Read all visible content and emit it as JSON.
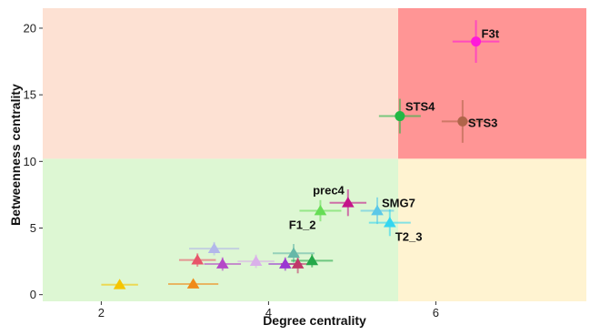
{
  "chart_data": {
    "type": "scatter",
    "xlabel": "Degree centrality",
    "ylabel": "Betweenness centrality",
    "xlim": [
      1.3,
      7.8
    ],
    "ylim": [
      -0.5,
      21.5
    ],
    "x_ticks": [
      2,
      4,
      6
    ],
    "y_ticks": [
      0,
      5,
      10,
      15,
      20
    ],
    "grid": false,
    "legend": "none",
    "quadrants": {
      "x_split": 5.55,
      "y_split": 10.2,
      "colors": {
        "top_left": "#fde1d3",
        "top_right": "#ff9595",
        "bottom_left": "#ddf7d3",
        "bottom_right": "#fff3d1"
      }
    },
    "points": [
      {
        "label": "F3t",
        "x": 6.48,
        "y": 19.0,
        "xerr": 0.28,
        "yerr": 1.6,
        "shape": "circle",
        "color": "#ff19d9"
      },
      {
        "label": "STS4",
        "x": 5.57,
        "y": 13.4,
        "xerr": 0.25,
        "yerr": 1.3,
        "shape": "circle",
        "color": "#22b845"
      },
      {
        "label": "STS3",
        "x": 6.32,
        "y": 13.0,
        "xerr": 0.25,
        "yerr": 1.6,
        "shape": "circle",
        "color": "#b0654a"
      },
      {
        "label": "prec4",
        "x": 4.95,
        "y": 6.9,
        "xerr": 0.22,
        "yerr": 1.0,
        "shape": "triangle",
        "color": "#c4148a"
      },
      {
        "label": "F1_2",
        "x": 4.62,
        "y": 6.3,
        "xerr": 0.25,
        "yerr": 0.8,
        "shape": "triangle",
        "color": "#66dd55"
      },
      {
        "label": "SMG7",
        "x": 5.3,
        "y": 6.3,
        "xerr": 0.2,
        "yerr": 1.0,
        "shape": "triangle",
        "color": "#5bc8e8"
      },
      {
        "label": "T2_3",
        "x": 5.45,
        "y": 5.4,
        "xerr": 0.25,
        "yerr": 1.0,
        "shape": "triangle",
        "color": "#34d6f0"
      },
      {
        "label": "",
        "x": 3.35,
        "y": 3.45,
        "xerr": 0.3,
        "yerr": 0.5,
        "shape": "triangle",
        "color": "#b2b7ea"
      },
      {
        "label": "",
        "x": 3.15,
        "y": 2.6,
        "xerr": 0.22,
        "yerr": 0.5,
        "shape": "triangle",
        "color": "#e8556a"
      },
      {
        "label": "",
        "x": 3.45,
        "y": 2.3,
        "xerr": 0.22,
        "yerr": 0.5,
        "shape": "triangle",
        "color": "#b548c8"
      },
      {
        "label": "",
        "x": 3.85,
        "y": 2.5,
        "xerr": 0.22,
        "yerr": 0.5,
        "shape": "triangle",
        "color": "#dab0ea"
      },
      {
        "label": "",
        "x": 4.3,
        "y": 3.1,
        "xerr": 0.25,
        "yerr": 0.7,
        "shape": "triangle",
        "color": "#66b8a8"
      },
      {
        "label": "",
        "x": 4.2,
        "y": 2.3,
        "xerr": 0.2,
        "yerr": 0.5,
        "shape": "triangle",
        "color": "#9b39d2"
      },
      {
        "label": "",
        "x": 4.35,
        "y": 2.3,
        "xerr": 0.2,
        "yerr": 0.7,
        "shape": "triangle",
        "color": "#c0386a"
      },
      {
        "label": "",
        "x": 4.52,
        "y": 2.55,
        "xerr": 0.25,
        "yerr": 0.5,
        "shape": "triangle",
        "color": "#25a84a"
      },
      {
        "label": "",
        "x": 2.22,
        "y": 0.75,
        "xerr": 0.22,
        "yerr": 0.3,
        "shape": "triangle",
        "color": "#f5c500"
      },
      {
        "label": "",
        "x": 3.1,
        "y": 0.8,
        "xerr": 0.3,
        "yerr": 0.3,
        "shape": "triangle",
        "color": "#f08a1a"
      }
    ]
  }
}
